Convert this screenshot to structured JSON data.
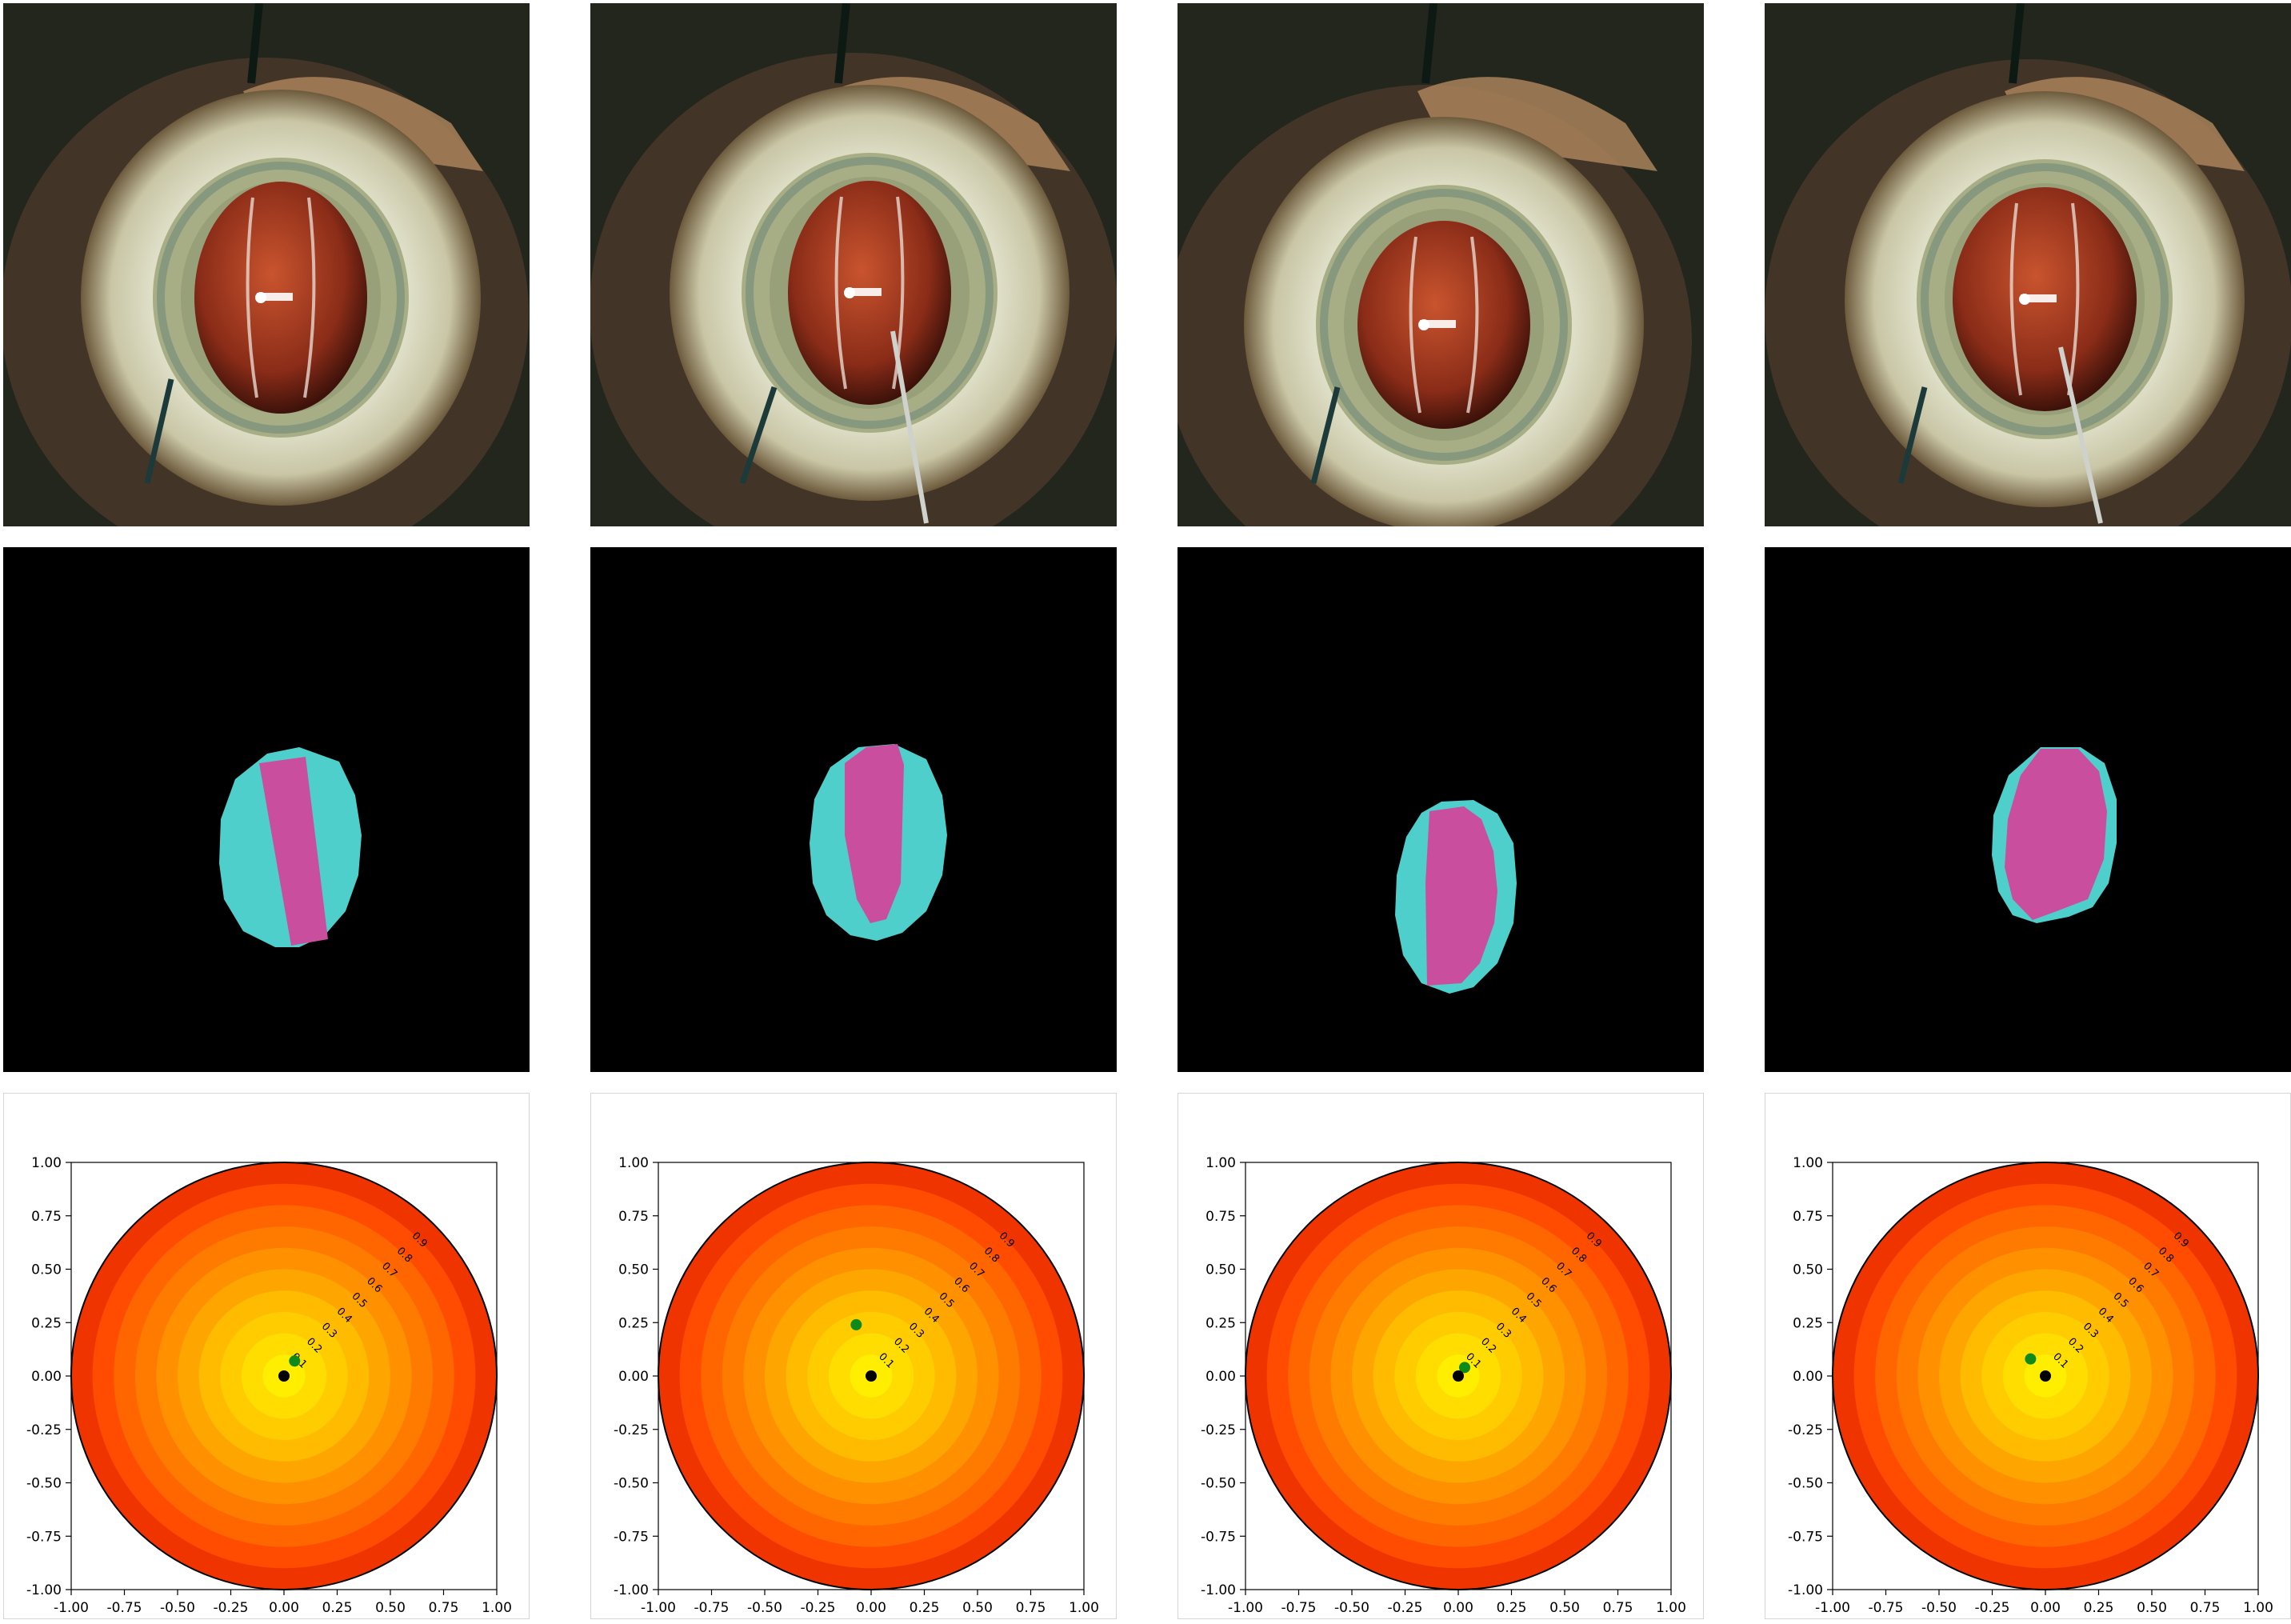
{
  "colors": {
    "lens": "#4ecfcb",
    "iol": "#c94f9e",
    "segmentation_background": "#000000",
    "contour_levels": [
      "#ffee00",
      "#ffdd00",
      "#ffcc00",
      "#ffbb00",
      "#ffa500",
      "#ff9000",
      "#ff7b00",
      "#ff6600",
      "#ff4c00",
      "#f03400"
    ],
    "predicted_point": "#0d8a1a",
    "center_point": "#000000"
  },
  "icons": {
    "surgical_frame": "eye-surgery-photo"
  },
  "segmentations": [
    {
      "lens": {
        "cx": 0.0,
        "cy": 0.0
      }
    },
    {
      "lens": {}
    },
    {
      "lens": {}
    },
    {
      "lens": {}
    }
  ],
  "chart_data": [
    {
      "type": "contour",
      "xlim": [
        -1.0,
        1.0
      ],
      "ylim": [
        -1.0,
        1.0
      ],
      "xticks": [
        "-1.00",
        "-0.75",
        "-0.50",
        "-0.25",
        "0.00",
        "0.25",
        "0.50",
        "0.75",
        "1.00"
      ],
      "yticks": [
        "1.00",
        "0.75",
        "0.50",
        "0.25",
        "0.00",
        "-0.25",
        "-0.50",
        "-0.75",
        "-1.00"
      ],
      "contour_labels": [
        "0.1",
        "0.2",
        "0.3",
        "0.4",
        "0.5",
        "0.6",
        "0.7",
        "0.8",
        "0.9"
      ],
      "center": {
        "x": 0.0,
        "y": 0.0
      },
      "point": {
        "x": 0.05,
        "y": 0.07
      }
    },
    {
      "type": "contour",
      "xlim": [
        -1.0,
        1.0
      ],
      "ylim": [
        -1.0,
        1.0
      ],
      "xticks": [
        "-1.00",
        "-0.75",
        "-0.50",
        "-0.25",
        "0.00",
        "0.25",
        "0.50",
        "0.75",
        "1.00"
      ],
      "yticks": [
        "1.00",
        "0.75",
        "0.50",
        "0.25",
        "0.00",
        "-0.25",
        "-0.50",
        "-0.75",
        "-1.00"
      ],
      "contour_labels": [
        "0.1",
        "0.2",
        "0.3",
        "0.4",
        "0.5",
        "0.6",
        "0.7",
        "0.8",
        "0.9"
      ],
      "center": {
        "x": 0.0,
        "y": 0.0
      },
      "point": {
        "x": -0.07,
        "y": 0.24
      }
    },
    {
      "type": "contour",
      "xlim": [
        -1.0,
        1.0
      ],
      "ylim": [
        -1.0,
        1.0
      ],
      "xticks": [
        "-1.00",
        "-0.75",
        "-0.50",
        "-0.25",
        "0.00",
        "0.25",
        "0.50",
        "0.75",
        "1.00"
      ],
      "yticks": [
        "1.00",
        "0.75",
        "0.50",
        "0.25",
        "0.00",
        "-0.25",
        "-0.50",
        "-0.75",
        "-1.00"
      ],
      "contour_labels": [
        "0.1",
        "0.2",
        "0.3",
        "0.4",
        "0.5",
        "0.6",
        "0.7",
        "0.8",
        "0.9"
      ],
      "center": {
        "x": 0.0,
        "y": 0.0
      },
      "point": {
        "x": 0.03,
        "y": 0.04
      }
    },
    {
      "type": "contour",
      "xlim": [
        -1.0,
        1.0
      ],
      "ylim": [
        -1.0,
        1.0
      ],
      "xticks": [
        "-1.00",
        "-0.75",
        "-0.50",
        "-0.25",
        "0.00",
        "0.25",
        "0.50",
        "0.75",
        "1.00"
      ],
      "yticks": [
        "1.00",
        "0.75",
        "0.50",
        "0.25",
        "0.00",
        "-0.25",
        "-0.50",
        "-0.75",
        "-1.00"
      ],
      "contour_labels": [
        "0.1",
        "0.2",
        "0.3",
        "0.4",
        "0.5",
        "0.6",
        "0.7",
        "0.8",
        "0.9"
      ],
      "center": {
        "x": 0.0,
        "y": 0.0
      },
      "point": {
        "x": -0.07,
        "y": 0.08
      }
    }
  ]
}
